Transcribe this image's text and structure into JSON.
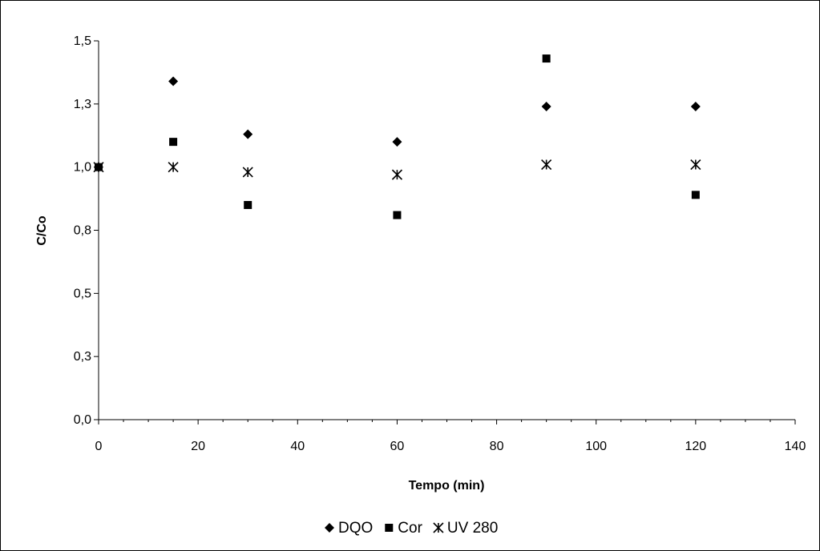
{
  "chart_data": {
    "type": "scatter",
    "title": "",
    "xlabel": "Tempo (min)",
    "ylabel": "C/Co",
    "xlim": [
      0,
      140
    ],
    "ylim": [
      0.0,
      1.5
    ],
    "x_ticks": [
      0,
      20,
      40,
      60,
      80,
      100,
      120,
      140
    ],
    "x_tick_labels": [
      "0",
      "20",
      "40",
      "60",
      "80",
      "100",
      "120",
      "140"
    ],
    "y_ticks": [
      0.0,
      0.25,
      0.5,
      0.75,
      1.0,
      1.25,
      1.5
    ],
    "y_tick_labels": [
      "0,0",
      "0,3",
      "0,5",
      "0,8",
      "1,0",
      "1,3",
      "1,5"
    ],
    "grid": false,
    "legend_position": "bottom",
    "series": [
      {
        "name": "DQO",
        "marker": "diamond",
        "color": "#000000",
        "x": [
          0,
          15,
          30,
          60,
          90,
          120
        ],
        "y": [
          1.0,
          1.34,
          1.13,
          1.1,
          1.24,
          1.24
        ]
      },
      {
        "name": "Cor",
        "marker": "square",
        "color": "#000000",
        "x": [
          0,
          15,
          30,
          60,
          90,
          120
        ],
        "y": [
          1.0,
          1.1,
          0.85,
          0.81,
          1.43,
          0.89
        ]
      },
      {
        "name": "UV 280",
        "marker": "asterisk",
        "color": "#000000",
        "x": [
          0,
          15,
          30,
          60,
          90,
          120
        ],
        "y": [
          1.0,
          1.0,
          0.98,
          0.97,
          1.01,
          1.01
        ]
      }
    ]
  }
}
